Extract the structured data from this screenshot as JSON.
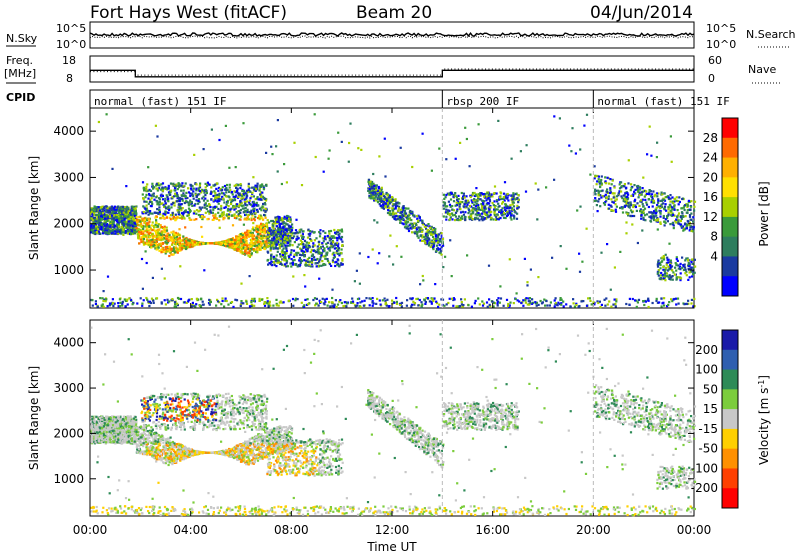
{
  "header": {
    "radar": "Fort Hays West (fitACF)",
    "beam": "Beam 20",
    "date": "04/Jun/2014"
  },
  "noise_panel": {
    "left_label": "N.Sky",
    "left_ticks": [
      "10^5",
      "10^0"
    ],
    "right_ticks": [
      "10^5",
      "10^0"
    ],
    "right_label": "N.Search"
  },
  "freq_panel": {
    "left_label_1": "Freq.",
    "left_label_2": "[MHz]",
    "left_ticks": [
      "18",
      "8"
    ],
    "right_ticks": [
      "60",
      "0"
    ],
    "right_label": "Nave"
  },
  "cpid_panel": {
    "label": "CPID",
    "segments": [
      {
        "label": "normal (fast) 151 IF",
        "start_h": 0,
        "end_h": 14
      },
      {
        "label": "rbsp 200 IF",
        "start_h": 14,
        "end_h": 20
      },
      {
        "label": "normal (fast) 151 IF",
        "start_h": 20,
        "end_h": 24
      }
    ]
  },
  "chart_data": [
    {
      "type": "heatmap",
      "name": "power",
      "ylabel": "Slant Range [km]",
      "yticks": [
        "4000",
        "3000",
        "2000",
        "1000"
      ],
      "ylim": [
        180,
        4500
      ],
      "colorbar": {
        "label": "Power [dB]",
        "ticks": [
          "28",
          "24",
          "20",
          "16",
          "12",
          "8",
          "4"
        ],
        "colors": [
          "#ff0000",
          "#ff6a00",
          "#ffb000",
          "#ffe000",
          "#a8d000",
          "#3a9a3a",
          "#2e7d5e",
          "#1a3aa0",
          "#0000ff"
        ]
      }
    },
    {
      "type": "heatmap",
      "name": "velocity",
      "ylabel": "Slant Range [km]",
      "yticks": [
        "4000",
        "3000",
        "2000",
        "1000"
      ],
      "ylim": [
        180,
        4500
      ],
      "colorbar": {
        "label": "Velocity [m s",
        "label_sup": "-1",
        "label_close": "]",
        "ticks": [
          "200",
          "100",
          "50",
          "15",
          "-15",
          "-50",
          "-100",
          "-200"
        ],
        "colors": [
          "#1a1aa8",
          "#2f5fb0",
          "#2e8b57",
          "#7ccd3c",
          "#c8c8c8",
          "#ffd000",
          "#ff9000",
          "#ff4000",
          "#ff0000"
        ]
      }
    }
  ],
  "xaxis": {
    "ticks": [
      "00:00",
      "04:00",
      "08:00",
      "12:00",
      "16:00",
      "20:00",
      "00:00"
    ],
    "label": "Time UT"
  },
  "colors": {
    "gray_scatter": "#c8c8c8",
    "power_main": "#ff9a00"
  }
}
